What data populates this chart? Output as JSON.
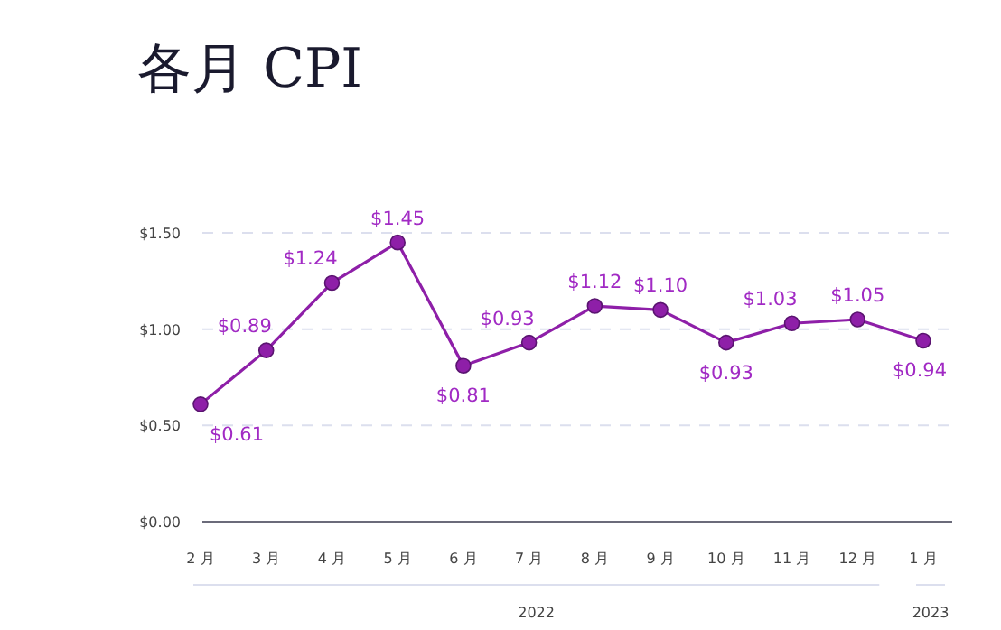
{
  "chart_data": {
    "type": "line",
    "title": "各月 CPI",
    "categories": [
      "2 月",
      "3 月",
      "4 月",
      "5 月",
      "6 月",
      "7 月",
      "8 月",
      "9 月",
      "10 月",
      "11 月",
      "12 月",
      "1 月"
    ],
    "series": [
      {
        "color": "#8e1fa8",
        "values": [
          0.61,
          0.89,
          1.24,
          1.45,
          0.81,
          0.93,
          1.12,
          1.1,
          0.93,
          1.03,
          1.05,
          0.94
        ],
        "value_labels": [
          "$0.61",
          "$0.89",
          "$1.24",
          "$1.45",
          "$0.81",
          "$0.93",
          "$1.12",
          "$1.10",
          "$0.93",
          "$1.03",
          "$1.05",
          "$0.94"
        ]
      }
    ],
    "ylim": [
      0,
      1.5
    ],
    "yticks": [
      {
        "value": 0,
        "label": "$0.00"
      },
      {
        "value": 0.5,
        "label": "$0.50"
      },
      {
        "value": 1,
        "label": "$1.00"
      },
      {
        "value": 1.5,
        "label": "$1.50"
      }
    ],
    "grid": "y",
    "marker": "circle",
    "line_style": "solid",
    "annotations": [
      "2022",
      "2023"
    ]
  }
}
